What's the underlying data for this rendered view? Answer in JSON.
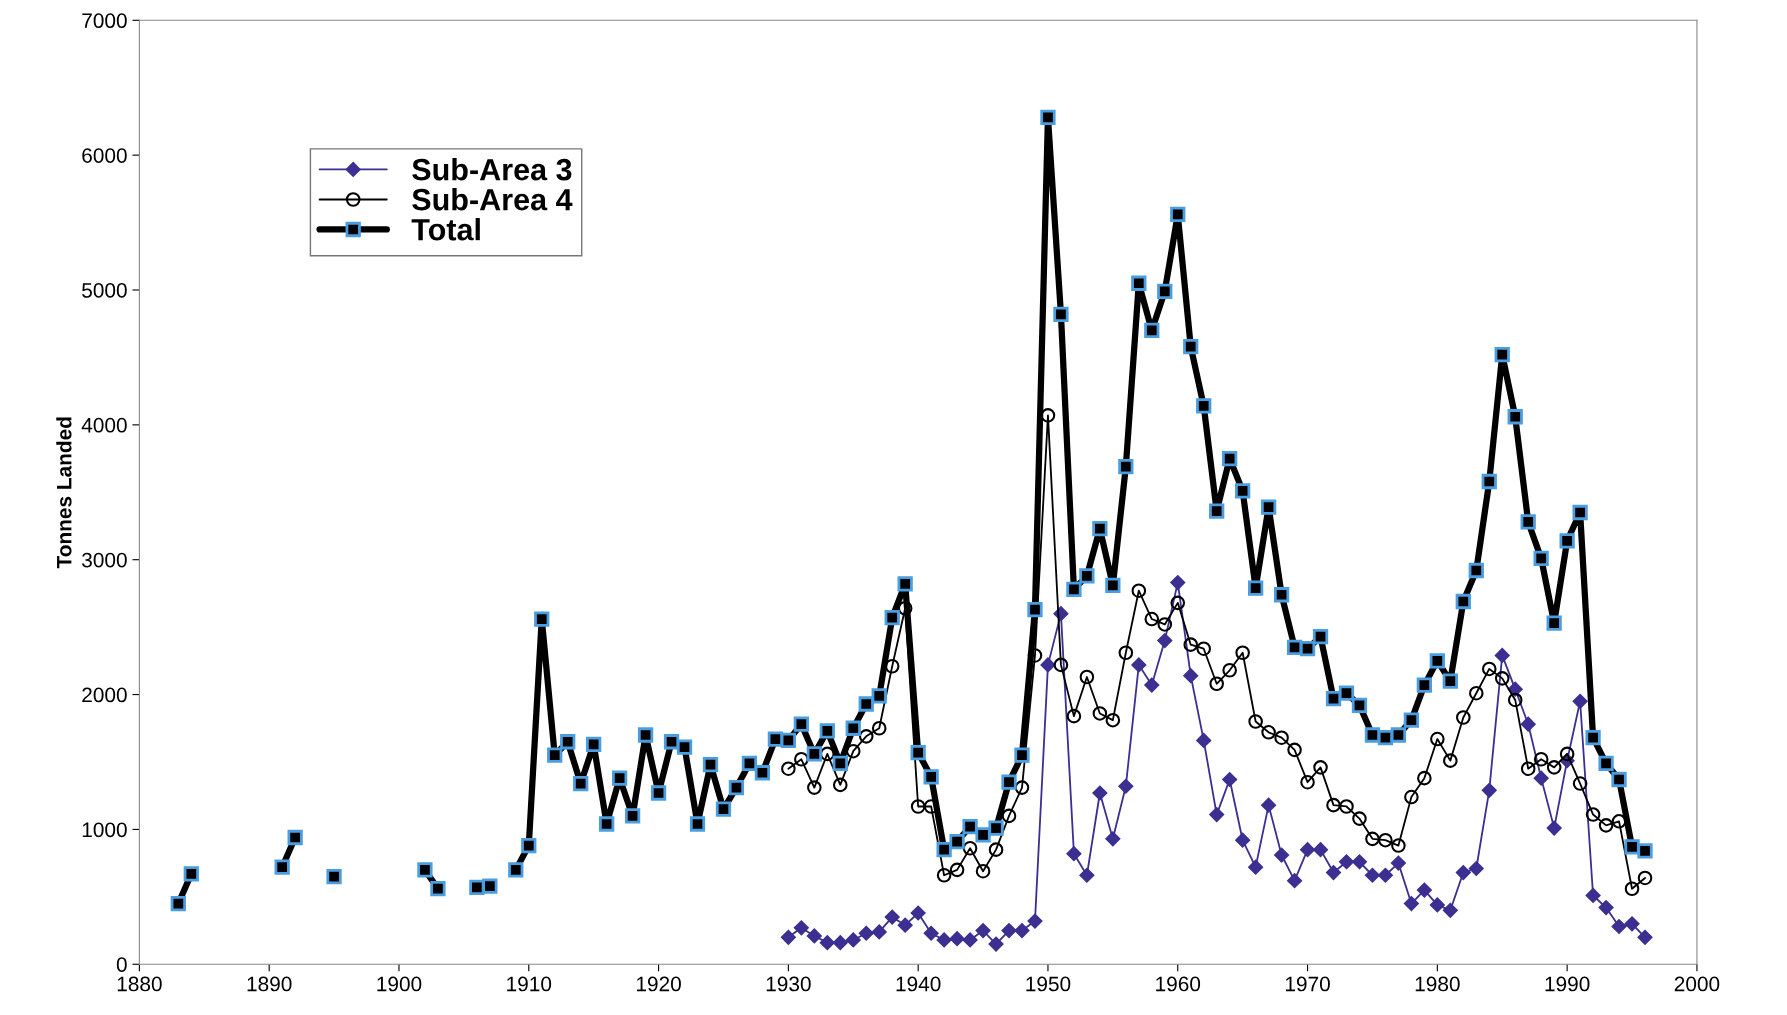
{
  "chart_data": {
    "type": "line",
    "ylabel": "Tonnes Landed",
    "xlim": [
      1880,
      2000
    ],
    "xticks": [
      1880,
      1890,
      1900,
      1910,
      1920,
      1930,
      1940,
      1950,
      1960,
      1970,
      1980,
      1990,
      2000
    ],
    "ylim": [
      0,
      7000
    ],
    "yticks": [
      0,
      1000,
      2000,
      3000,
      4000,
      5000,
      6000,
      7000
    ],
    "grid": false,
    "legend": "top left",
    "line_style": "solid",
    "series": [
      {
        "name": "Sub-Area 3",
        "color": "#3b2f91",
        "marker": "diamond",
        "x": [
          1930,
          1931,
          1932,
          1933,
          1934,
          1935,
          1936,
          1937,
          1938,
          1939,
          1940,
          1941,
          1942,
          1943,
          1944,
          1945,
          1946,
          1947,
          1948,
          1949,
          1950,
          1951,
          1952,
          1953,
          1954,
          1955,
          1956,
          1957,
          1958,
          1959,
          1960,
          1961,
          1962,
          1963,
          1964,
          1965,
          1966,
          1967,
          1968,
          1969,
          1970,
          1971,
          1972,
          1973,
          1974,
          1975,
          1976,
          1977,
          1978,
          1979,
          1980,
          1981,
          1982,
          1983,
          1984,
          1985,
          1986,
          1987,
          1988,
          1989,
          1990,
          1991,
          1992,
          1993,
          1994,
          1995,
          1996
        ],
        "values": [
          200,
          270,
          210,
          160,
          160,
          180,
          230,
          240,
          350,
          290,
          380,
          230,
          180,
          190,
          180,
          250,
          150,
          250,
          250,
          320,
          2220,
          2600,
          820,
          660,
          1270,
          930,
          1320,
          2220,
          2070,
          2400,
          2830,
          2140,
          1660,
          1110,
          1370,
          920,
          720,
          1180,
          810,
          620,
          850,
          850,
          680,
          760,
          760,
          660,
          660,
          750,
          450,
          550,
          440,
          400,
          680,
          710,
          1290,
          2290,
          2040,
          1780,
          1380,
          1010,
          1510,
          1950,
          510,
          420,
          280,
          300,
          200
        ]
      },
      {
        "name": "Sub-Area 4",
        "color": "#000000",
        "marker": "circle",
        "x": [
          1930,
          1931,
          1932,
          1933,
          1934,
          1935,
          1936,
          1937,
          1938,
          1939,
          1940,
          1941,
          1942,
          1943,
          1944,
          1945,
          1946,
          1947,
          1948,
          1949,
          1950,
          1951,
          1952,
          1953,
          1954,
          1955,
          1956,
          1957,
          1958,
          1959,
          1960,
          1961,
          1962,
          1963,
          1964,
          1965,
          1966,
          1967,
          1968,
          1969,
          1970,
          1971,
          1972,
          1973,
          1974,
          1975,
          1976,
          1977,
          1978,
          1979,
          1980,
          1981,
          1982,
          1983,
          1984,
          1985,
          1986,
          1987,
          1988,
          1989,
          1990,
          1991,
          1992,
          1993,
          1994,
          1995,
          1996
        ],
        "values": [
          1450,
          1520,
          1310,
          1560,
          1330,
          1580,
          1690,
          1750,
          2210,
          2640,
          1170,
          1170,
          660,
          700,
          860,
          690,
          850,
          1100,
          1310,
          2290,
          4070,
          2220,
          1840,
          2130,
          1860,
          1810,
          2310,
          2770,
          2560,
          2520,
          2680,
          2370,
          2340,
          2080,
          2180,
          2310,
          1800,
          1720,
          1680,
          1590,
          1350,
          1460,
          1180,
          1170,
          1080,
          930,
          920,
          880,
          1240,
          1380,
          1670,
          1510,
          1830,
          2010,
          2190,
          2120,
          1960,
          1450,
          1520,
          1460,
          1560,
          1340,
          1110,
          1030,
          1060,
          560,
          640
        ]
      },
      {
        "name": "Total",
        "color": "#000000",
        "marker": "square",
        "x": [
          1883,
          1884,
          1885,
          1886,
          1887,
          1888,
          1889,
          1890,
          1891,
          1892,
          1893,
          1894,
          1895,
          1896,
          1897,
          1898,
          1899,
          1900,
          1901,
          1902,
          1903,
          1904,
          1905,
          1906,
          1907,
          1908,
          1909,
          1910,
          1911,
          1912,
          1913,
          1914,
          1915,
          1916,
          1917,
          1918,
          1919,
          1920,
          1921,
          1922,
          1923,
          1924,
          1925,
          1926,
          1927,
          1928,
          1929,
          1930,
          1931,
          1932,
          1933,
          1934,
          1935,
          1936,
          1937,
          1938,
          1939,
          1940,
          1941,
          1942,
          1943,
          1944,
          1945,
          1946,
          1947,
          1948,
          1949,
          1950,
          1951,
          1952,
          1953,
          1954,
          1955,
          1956,
          1957,
          1958,
          1959,
          1960,
          1961,
          1962,
          1963,
          1964,
          1965,
          1966,
          1967,
          1968,
          1969,
          1970,
          1971,
          1972,
          1973,
          1974,
          1975,
          1976,
          1977,
          1978,
          1979,
          1980,
          1981,
          1982,
          1983,
          1984,
          1985,
          1986,
          1987,
          1988,
          1989,
          1990,
          1991,
          1992,
          1993,
          1994,
          1995,
          1996
        ],
        "values": [
          450,
          670,
          null,
          null,
          null,
          null,
          null,
          null,
          720,
          940,
          null,
          null,
          650,
          null,
          null,
          null,
          null,
          null,
          null,
          700,
          560,
          null,
          null,
          570,
          580,
          null,
          700,
          880,
          2560,
          1550,
          1650,
          1340,
          1630,
          1040,
          1380,
          1100,
          1700,
          1270,
          1650,
          1610,
          1040,
          1480,
          1150,
          1310,
          1490,
          1420,
          1670,
          1660,
          1780,
          1560,
          1730,
          1490,
          1750,
          1930,
          1990,
          2570,
          2820,
          1570,
          1390,
          850,
          910,
          1020,
          960,
          1010,
          1350,
          1550,
          2630,
          6280,
          4820,
          2780,
          2880,
          3230,
          2810,
          3690,
          5050,
          4700,
          4990,
          5560,
          4580,
          4140,
          3360,
          3750,
          3510,
          2790,
          3390,
          2740,
          2350,
          2340,
          2430,
          1970,
          2010,
          1920,
          1700,
          1680,
          1700,
          1810,
          2070,
          2250,
          2100,
          2690,
          2920,
          3580,
          4520,
          4060,
          3280,
          3010,
          2530,
          3140,
          3350,
          1680,
          1490,
          1370,
          870,
          840
        ]
      }
    ]
  }
}
